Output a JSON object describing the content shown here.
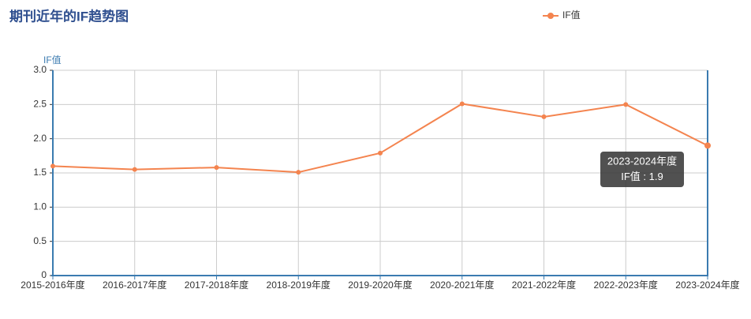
{
  "chart_data": {
    "type": "line",
    "title": "期刊近年的IF趋势图",
    "y_label": "IF值",
    "categories": [
      "2015-2016年度",
      "2016-2017年度",
      "2017-2018年度",
      "2018-2019年度",
      "2019-2020年度",
      "2020-2021年度",
      "2021-2022年度",
      "2022-2023年度",
      "2023-2024年度"
    ],
    "series": [
      {
        "name": "IF值",
        "color": "#f4844f",
        "values": [
          1.6,
          1.55,
          1.58,
          1.51,
          1.79,
          2.51,
          2.32,
          2.5,
          1.9
        ]
      }
    ],
    "ylim": [
      0,
      3
    ],
    "yticks": [
      0,
      0.5,
      {
        "value": 1,
        "label": "1.0"
      },
      1.5,
      {
        "value": 2,
        "label": "2.0"
      },
      2.5,
      {
        "value": 3,
        "label": "3.0"
      }
    ],
    "grid": true,
    "legend": "top-right",
    "tooltip": {
      "category_index": 8,
      "series_index": 0
    }
  }
}
